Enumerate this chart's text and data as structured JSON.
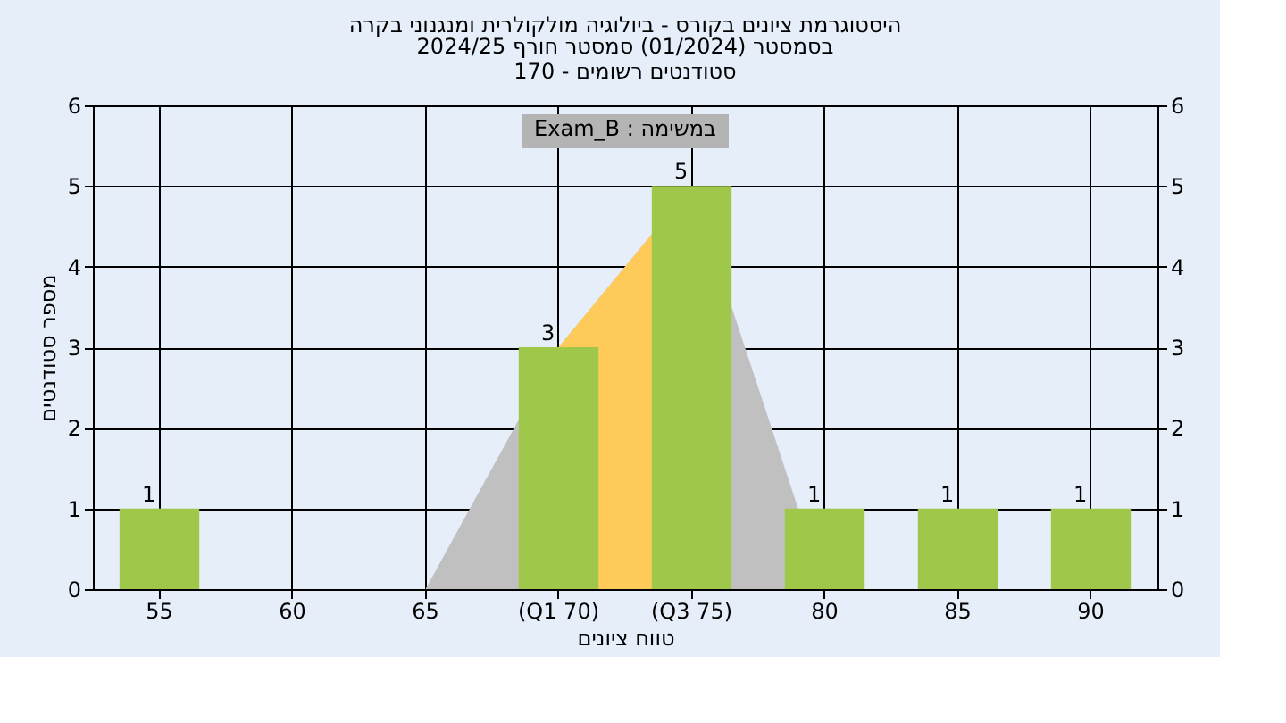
{
  "chart_data": {
    "type": "bar",
    "title": "היסטוגרמת ציונים בקורס - ביולוגיה מולקולרית ומנגנוני בקרה",
    "subtitle": [
      "בסמסטר  (01/2024)  סמסטר חורף 2024/25",
      "סטודנטים רשומים - 170"
    ],
    "xlabel": "טווח ציונים",
    "ylabel": "מספר סטודנטים",
    "annotations": [
      "Exam_B : במשימה"
    ],
    "categories": [
      "55",
      "60",
      "65",
      "(Q1 70)",
      "(Q3 75)",
      "80",
      "85",
      "90"
    ],
    "series": [
      {
        "type": "area",
        "color": "#c0c0c0",
        "values": [
          null,
          null,
          0,
          3,
          5,
          0,
          null,
          null
        ]
      },
      {
        "type": "area",
        "color": "#fecb5a",
        "values": [
          null,
          null,
          null,
          3,
          5,
          null,
          null,
          null
        ]
      },
      {
        "color": "#9fc84a",
        "values": [
          1,
          0,
          0,
          3,
          5,
          1,
          1,
          1
        ],
        "value_labels": [
          "1",
          null,
          null,
          "3",
          "5",
          "1",
          "1",
          "1"
        ]
      }
    ],
    "ylim": [
      0,
      6
    ],
    "yticks": [
      0,
      1,
      2,
      3,
      4,
      5,
      6
    ],
    "y2lim": [
      0,
      6
    ],
    "y2ticks": [
      0,
      1,
      2,
      3,
      4,
      5,
      6
    ],
    "grid": true
  }
}
